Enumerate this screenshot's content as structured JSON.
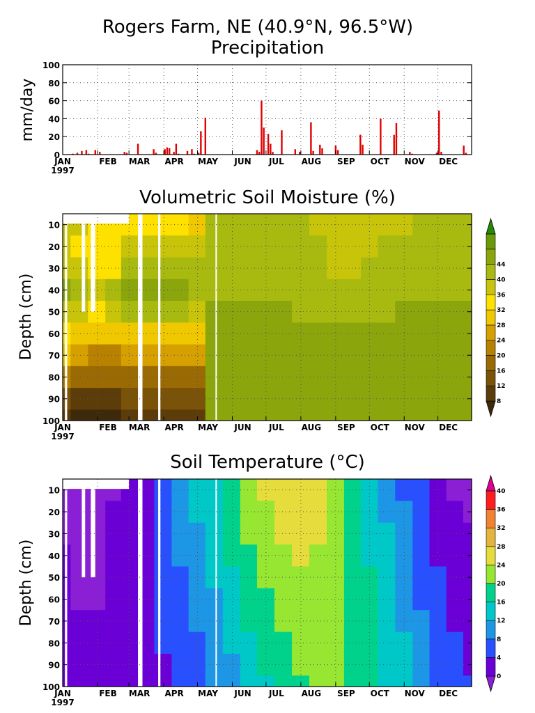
{
  "figure": {
    "title_line1": "Rogers Farm, NE (40.9°N, 96.5°W)",
    "title_line2": "Precipitation",
    "soil_moisture_title": "Volumetric Soil Moisture (%)",
    "soil_temperature_title": "Soil Temperature (°C)"
  },
  "colors": {
    "precip_bar": "#e00000",
    "gap": "#ffffff",
    "moisture_palette": [
      "#3d2a0a",
      "#5c3d0a",
      "#7a5208",
      "#9a6a04",
      "#b88200",
      "#d6a000",
      "#f0c800",
      "#ffe100",
      "#c8c40a",
      "#a8ba10",
      "#8aa60c",
      "#6b9a08",
      "#228b00"
    ],
    "temperature_palette": [
      "#8a1fd6",
      "#6a00d6",
      "#2850ff",
      "#1e96e6",
      "#00c8c8",
      "#00d28c",
      "#96e632",
      "#e6dc3c",
      "#e6b43c",
      "#f08232",
      "#ff1e1e",
      "#e00090"
    ]
  },
  "chart_data": [
    {
      "type": "bar",
      "title": "Precipitation",
      "ylabel": "mm/day",
      "ylim": [
        0,
        100
      ],
      "yticks": [
        0,
        20,
        40,
        60,
        80,
        100
      ],
      "xlim": [
        1,
        365
      ],
      "month_labels": [
        "JAN",
        "FEB",
        "MAR",
        "APR",
        "MAY",
        "JUN",
        "JUL",
        "AUG",
        "SEP",
        "OCT",
        "NOV",
        "DEC"
      ],
      "month_start_days": [
        1,
        32,
        60,
        91,
        121,
        152,
        182,
        213,
        244,
        274,
        305,
        335
      ],
      "year_label": "1997",
      "grid": true,
      "x": [
        10,
        14,
        18,
        22,
        24,
        30,
        34,
        56,
        58,
        68,
        82,
        84,
        92,
        94,
        96,
        100,
        102,
        104,
        112,
        116,
        118,
        122,
        124,
        128,
        174,
        176,
        178,
        180,
        184,
        186,
        188,
        196,
        208,
        212,
        222,
        224,
        230,
        232,
        244,
        246,
        266,
        268,
        284,
        296,
        298,
        310,
        312,
        334,
        336,
        338,
        358,
        360
      ],
      "values": [
        1,
        2,
        4,
        5,
        1,
        5,
        3,
        3,
        2,
        12,
        6,
        2,
        6,
        8,
        7,
        3,
        12,
        1,
        4,
        6,
        1,
        2,
        26,
        41,
        5,
        3,
        60,
        30,
        23,
        12,
        3,
        27,
        6,
        3,
        36,
        4,
        11,
        7,
        10,
        5,
        22,
        11,
        40,
        22,
        35,
        3,
        1,
        2,
        49,
        3,
        10,
        2
      ]
    },
    {
      "type": "heatmap",
      "title": "Volumetric Soil Moisture (%)",
      "ylabel": "Depth (cm)",
      "yticks": [
        10,
        20,
        30,
        40,
        50,
        60,
        70,
        80,
        90,
        100
      ],
      "ylim": [
        100,
        5
      ],
      "month_labels": [
        "JAN",
        "FEB",
        "MAR",
        "APR",
        "MAY",
        "JUN",
        "JUL",
        "AUG",
        "SEP",
        "OCT",
        "NOV",
        "DEC"
      ],
      "year_label": "1997",
      "colorbar_levels": [
        8,
        12,
        16,
        20,
        24,
        28,
        32,
        36,
        40,
        44
      ],
      "depths": [
        10,
        20,
        30,
        40,
        50,
        60,
        70,
        80,
        90,
        100
      ],
      "days": [
        1,
        15,
        32,
        46,
        60,
        74,
        91,
        105,
        121,
        135,
        152,
        166,
        182,
        197,
        213,
        228,
        244,
        259,
        274,
        289,
        305,
        320,
        335,
        350,
        365
      ],
      "values": [
        [
          38,
          36,
          34,
          32,
          33,
          34,
          33,
          32,
          30,
          40,
          41,
          40,
          41,
          41,
          41,
          39,
          38,
          37,
          37,
          38,
          38,
          40,
          40,
          41,
          41
        ],
        [
          37,
          34,
          33,
          33,
          37,
          37,
          37,
          37,
          37,
          40,
          42,
          42,
          42,
          42,
          41,
          40,
          39,
          39,
          39,
          40,
          40,
          40,
          41,
          41,
          41
        ],
        [
          39,
          36,
          34,
          35,
          40,
          41,
          41,
          41,
          41,
          41,
          42,
          42,
          42,
          42,
          41,
          40,
          39,
          39,
          40,
          40,
          41,
          41,
          41,
          41,
          41
        ],
        [
          45,
          41,
          38,
          40,
          46,
          46,
          46,
          45,
          43,
          42,
          42,
          42,
          42,
          42,
          41,
          41,
          41,
          40,
          40,
          40,
          41,
          41,
          41,
          41,
          41
        ],
        [
          38,
          36,
          34,
          36,
          40,
          40,
          40,
          40,
          39,
          44,
          45,
          45,
          44,
          44,
          42,
          41,
          41,
          41,
          41,
          41,
          44,
          44,
          44,
          44,
          44
        ],
        [
          33,
          30,
          28,
          29,
          31,
          31,
          30,
          30,
          29,
          45,
          45,
          45,
          45,
          45,
          45,
          45,
          44,
          44,
          44,
          44,
          45,
          45,
          45,
          45,
          45
        ],
        [
          28,
          24,
          22,
          23,
          26,
          25,
          25,
          24,
          24,
          45,
          45,
          45,
          45,
          45,
          45,
          45,
          45,
          45,
          45,
          45,
          45,
          45,
          45,
          45,
          45
        ],
        [
          20,
          17,
          16,
          17,
          18,
          18,
          18,
          17,
          18,
          45,
          45,
          45,
          45,
          45,
          45,
          45,
          45,
          45,
          45,
          45,
          45,
          45,
          45,
          45,
          45
        ],
        [
          12,
          11,
          10,
          11,
          12,
          12,
          12,
          12,
          13,
          45,
          45,
          45,
          45,
          45,
          45,
          45,
          45,
          45,
          45,
          45,
          45,
          45,
          45,
          45,
          45
        ],
        [
          8,
          7,
          7,
          7,
          8,
          8,
          8,
          8,
          9,
          45,
          45,
          45,
          45,
          45,
          45,
          45,
          45,
          45,
          45,
          45,
          45,
          45,
          45,
          45,
          45
        ]
      ]
    },
    {
      "type": "heatmap",
      "title": "Soil Temperature (°C)",
      "ylabel": "Depth (cm)",
      "yticks": [
        10,
        20,
        30,
        40,
        50,
        60,
        70,
        80,
        90,
        100
      ],
      "ylim": [
        100,
        5
      ],
      "month_labels": [
        "JAN",
        "FEB",
        "MAR",
        "APR",
        "MAY",
        "JUN",
        "JUL",
        "AUG",
        "SEP",
        "OCT",
        "NOV",
        "DEC"
      ],
      "year_label": "1997",
      "colorbar_levels": [
        0,
        4,
        8,
        12,
        16,
        20,
        24,
        28,
        32,
        36,
        40
      ],
      "depths": [
        10,
        20,
        30,
        40,
        50,
        60,
        70,
        80,
        90,
        100
      ],
      "days": [
        1,
        15,
        32,
        46,
        60,
        74,
        91,
        105,
        121,
        135,
        152,
        166,
        182,
        197,
        213,
        228,
        244,
        259,
        274,
        289,
        305,
        320,
        335,
        350,
        365
      ],
      "values": [
        [
          -2,
          -2,
          -2,
          -1,
          1,
          3,
          7,
          10,
          13,
          15,
          19,
          22,
          24,
          25,
          26,
          25,
          22,
          18,
          15,
          11,
          7,
          4,
          1,
          -1,
          -2
        ],
        [
          -1,
          -1,
          -1,
          0,
          1,
          3,
          6,
          9,
          12,
          14,
          18,
          21,
          23,
          24,
          25,
          24,
          22,
          18,
          15,
          11,
          8,
          5,
          2,
          0,
          -1
        ],
        [
          -1,
          -1,
          -1,
          0,
          1,
          3,
          6,
          8,
          11,
          13,
          17,
          20,
          22,
          24,
          24,
          24,
          22,
          18,
          15,
          12,
          8,
          5,
          2,
          1,
          0
        ],
        [
          0,
          -1,
          -1,
          0,
          1,
          3,
          5,
          8,
          10,
          13,
          16,
          19,
          21,
          23,
          24,
          23,
          21,
          18,
          15,
          12,
          9,
          6,
          3,
          2,
          1
        ],
        [
          0,
          -1,
          -1,
          0,
          1,
          2,
          5,
          7,
          9,
          12,
          15,
          18,
          20,
          22,
          23,
          23,
          21,
          18,
          16,
          13,
          10,
          7,
          4,
          2,
          1
        ],
        [
          0,
          -1,
          -1,
          0,
          1,
          2,
          4,
          6,
          8,
          11,
          14,
          17,
          19,
          21,
          22,
          22,
          21,
          18,
          16,
          13,
          10,
          7,
          4,
          3,
          2
        ],
        [
          1,
          0,
          0,
          0,
          1,
          2,
          4,
          6,
          8,
          10,
          13,
          16,
          18,
          20,
          21,
          22,
          21,
          19,
          16,
          14,
          11,
          8,
          5,
          3,
          2
        ],
        [
          2,
          1,
          1,
          1,
          1,
          2,
          4,
          5,
          7,
          9,
          12,
          15,
          17,
          19,
          21,
          21,
          20,
          19,
          17,
          14,
          12,
          8,
          6,
          4,
          3
        ],
        [
          2,
          2,
          1,
          1,
          2,
          2,
          3,
          5,
          7,
          8,
          11,
          14,
          16,
          18,
          20,
          21,
          20,
          19,
          17,
          15,
          12,
          9,
          6,
          4,
          3
        ],
        [
          3,
          2,
          2,
          2,
          2,
          2,
          3,
          5,
          6,
          8,
          10,
          13,
          15,
          17,
          19,
          20,
          20,
          19,
          17,
          15,
          12,
          9,
          7,
          5,
          4
        ]
      ]
    }
  ]
}
